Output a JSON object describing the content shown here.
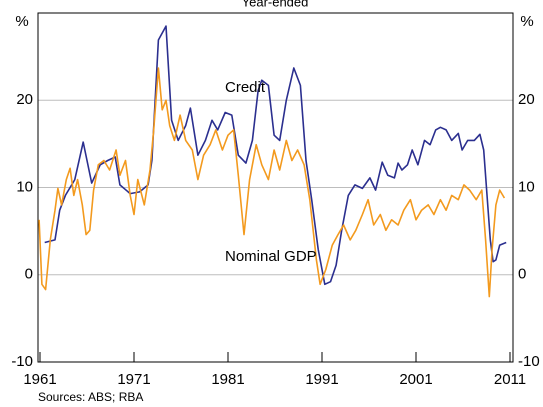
{
  "chart_data": {
    "type": "line",
    "title": "Year-ended",
    "ylabel": "%",
    "source": "Sources: ABS; RBA",
    "xlim": [
      1961,
      2011
    ],
    "xticks": [
      1961,
      1971,
      1981,
      1991,
      2001,
      2011
    ],
    "ylim": [
      -10,
      30
    ],
    "yticks": [
      -10,
      0,
      10,
      20
    ],
    "grid": true,
    "series": [
      {
        "name": "Credit",
        "color": "#2b2f8f",
        "x": [
          1961.5,
          1962.6,
          1963.1,
          1963.7,
          1964.7,
          1965.6,
          1966.5,
          1967.4,
          1968.2,
          1969.0,
          1969.5,
          1970.6,
          1971.6,
          1972.5,
          1972.9,
          1973.6,
          1974.4,
          1975.0,
          1975.7,
          1976.5,
          1977.0,
          1977.8,
          1978.6,
          1979.3,
          1979.9,
          1980.7,
          1981.4,
          1982.1,
          1982.9,
          1983.6,
          1984.2,
          1984.6,
          1985.3,
          1985.9,
          1986.5,
          1987.2,
          1988.0,
          1988.7,
          1989.3,
          1989.9,
          1990.6,
          1991.3,
          1991.9,
          1992.5,
          1993.1,
          1993.8,
          1994.5,
          1995.3,
          1996.1,
          1996.7,
          1997.4,
          1998.0,
          1998.7,
          1999.1,
          1999.5,
          2000.1,
          2000.6,
          2001.2,
          2001.9,
          2002.5,
          2003.1,
          2003.6,
          2004.2,
          2004.8,
          2005.5,
          2005.9,
          2006.5,
          2007.2,
          2007.8,
          2008.2,
          2008.9,
          2009.2,
          2009.5,
          2009.9,
          2010.6
        ],
        "values": [
          3.7,
          4.0,
          7.4,
          9.1,
          10.9,
          15.2,
          10.5,
          12.6,
          13.1,
          13.5,
          10.3,
          9.3,
          9.5,
          10.3,
          13.1,
          26.9,
          28.5,
          17.7,
          15.4,
          17.1,
          19.1,
          13.7,
          15.4,
          17.7,
          16.6,
          18.6,
          18.3,
          13.7,
          12.8,
          15.4,
          21.1,
          22.3,
          21.7,
          16.0,
          15.4,
          20.0,
          23.7,
          21.7,
          13.1,
          8.6,
          2.9,
          -1.1,
          -0.8,
          1.1,
          5.1,
          9.1,
          10.3,
          9.9,
          11.1,
          9.7,
          12.9,
          11.4,
          11.1,
          12.8,
          12.0,
          12.6,
          14.3,
          12.6,
          15.4,
          14.9,
          16.6,
          16.9,
          16.6,
          15.4,
          16.2,
          14.3,
          15.4,
          15.4,
          16.1,
          14.3,
          4.0,
          1.5,
          1.7,
          3.4,
          3.7
        ]
      },
      {
        "name": "Nominal GDP",
        "color": "#f39a1e",
        "x": [
          1960.9,
          1961.2,
          1961.6,
          1962.1,
          1962.6,
          1962.9,
          1963.3,
          1963.8,
          1964.2,
          1964.6,
          1965.0,
          1965.5,
          1965.9,
          1966.3,
          1966.7,
          1967.2,
          1967.8,
          1968.4,
          1969.1,
          1969.5,
          1970.1,
          1970.6,
          1971.0,
          1971.4,
          1972.1,
          1972.7,
          1973.1,
          1973.6,
          1974.0,
          1974.4,
          1974.8,
          1975.3,
          1975.9,
          1976.5,
          1977.2,
          1977.8,
          1978.4,
          1979.1,
          1979.7,
          1980.4,
          1981.0,
          1981.6,
          1982.1,
          1982.7,
          1983.3,
          1984.0,
          1984.6,
          1985.3,
          1985.9,
          1986.5,
          1987.2,
          1987.8,
          1988.4,
          1989.1,
          1989.7,
          1990.4,
          1990.8,
          1991.4,
          1992.1,
          1992.7,
          1993.3,
          1994.0,
          1994.6,
          1995.3,
          1995.9,
          1996.5,
          1997.2,
          1997.8,
          1998.4,
          1999.1,
          1999.7,
          2000.4,
          2001.0,
          2001.6,
          2002.3,
          2002.9,
          2003.6,
          2004.2,
          2004.8,
          2005.5,
          2006.1,
          2006.7,
          2007.4,
          2008.0,
          2008.4,
          2008.8,
          2009.1,
          2009.5,
          2009.9,
          2010.4
        ],
        "values": [
          6.3,
          -1.1,
          -1.7,
          4.0,
          7.4,
          9.9,
          8.0,
          10.9,
          12.2,
          9.1,
          10.9,
          8.0,
          4.6,
          5.1,
          9.7,
          12.6,
          13.1,
          12.0,
          14.3,
          11.4,
          13.1,
          9.1,
          6.9,
          10.9,
          8.0,
          12.0,
          16.6,
          23.7,
          18.9,
          20.0,
          17.1,
          15.4,
          18.3,
          15.4,
          14.3,
          10.9,
          13.7,
          14.9,
          16.6,
          14.3,
          16.0,
          16.6,
          11.4,
          4.6,
          10.9,
          14.9,
          12.6,
          10.9,
          14.3,
          12.0,
          15.4,
          13.1,
          14.3,
          12.6,
          8.6,
          1.7,
          -1.1,
          0.6,
          3.4,
          4.6,
          5.7,
          4.0,
          5.1,
          6.9,
          8.6,
          5.7,
          6.9,
          5.1,
          6.3,
          5.7,
          7.4,
          8.6,
          6.3,
          7.4,
          8.0,
          6.9,
          8.6,
          7.4,
          9.1,
          8.6,
          10.3,
          9.7,
          8.6,
          9.7,
          4.0,
          -2.5,
          2.9,
          8.0,
          9.7,
          8.8
        ]
      }
    ]
  }
}
